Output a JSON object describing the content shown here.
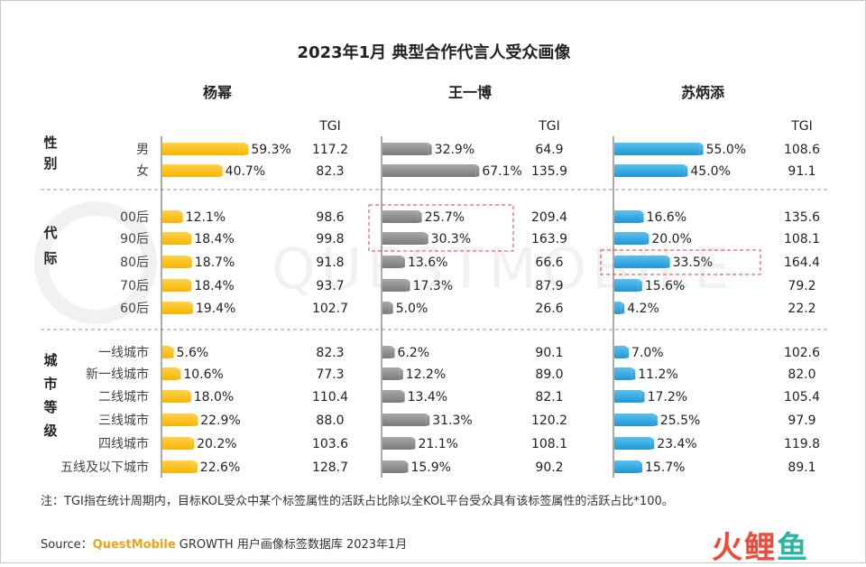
{
  "title": "2023年1月 典型合作代言人受众画像",
  "tgi_label": "TGI",
  "note": "注：TGI指在统计周期内，目标KOL受众中某个标签属性的活跃占比除以全KOL平台受众具有该标签属性的活跃占比*100。",
  "source": {
    "prefix": "Source：",
    "brand": "QuestMobile",
    "suffix": " GROWTH 用户画像标签数据库 2023年1月"
  },
  "watermark": "QUESTMOBILE",
  "logo": {
    "c1": "火",
    "c2": "鲤",
    "c3": "鱼"
  },
  "colors": {
    "yang": "#f6b400",
    "wang": "#7a7a7a",
    "su": "#1f97d6",
    "highlight_box": "#e04040"
  },
  "chart_data": {
    "type": "bar",
    "title": "2023年1月 典型合作代言人受众画像",
    "groups": [
      {
        "label": "性别",
        "categories": [
          "男",
          "女"
        ]
      },
      {
        "label": "代际",
        "categories": [
          "00后",
          "90后",
          "80后",
          "70后",
          "60后"
        ]
      },
      {
        "label": "城市等级",
        "categories": [
          "一线城市",
          "新一线城市",
          "二线城市",
          "三线城市",
          "四线城市",
          "五线及以下城市"
        ]
      }
    ],
    "categories": [
      "男",
      "女",
      "00后",
      "90后",
      "80后",
      "70后",
      "60后",
      "一线城市",
      "新一线城市",
      "二线城市",
      "三线城市",
      "四线城市",
      "五线及以下城市"
    ],
    "unit": "%",
    "series": [
      {
        "name": "杨幂",
        "values": [
          59.3,
          40.7,
          12.1,
          18.4,
          18.7,
          18.4,
          19.4,
          5.6,
          10.6,
          18.0,
          22.9,
          20.2,
          22.6
        ],
        "tgi": [
          "117.2",
          "82.3",
          "98.6",
          "99.8",
          "91.8",
          "93.7",
          "102.7",
          "82.3",
          "77.3",
          "110.4",
          "88.0",
          "103.6",
          "128.7"
        ]
      },
      {
        "name": "王一博",
        "values": [
          32.9,
          67.1,
          25.7,
          30.3,
          13.6,
          17.3,
          5.0,
          6.2,
          12.2,
          13.4,
          31.3,
          21.1,
          15.9
        ],
        "tgi": [
          "64.9",
          "135.9",
          "209.4",
          "163.9",
          "66.6",
          "87.9",
          "26.6",
          "90.1",
          "89.0",
          "82.1",
          "120.2",
          "108.1",
          "90.2"
        ]
      },
      {
        "name": "苏炳添",
        "values": [
          55.0,
          45.0,
          16.6,
          20.0,
          33.5,
          15.6,
          4.2,
          7.0,
          11.2,
          17.2,
          25.5,
          23.4,
          15.7
        ],
        "tgi": [
          "108.6",
          "91.1",
          "135.6",
          "108.1",
          "164.4",
          "79.2",
          "22.2",
          "102.6",
          "82.0",
          "105.4",
          "97.9",
          "119.8",
          "89.1"
        ]
      }
    ],
    "highlights": [
      {
        "series": "王一博",
        "categories": [
          "00后",
          "90后"
        ]
      },
      {
        "series": "苏炳添",
        "categories": [
          "80后"
        ]
      }
    ]
  }
}
